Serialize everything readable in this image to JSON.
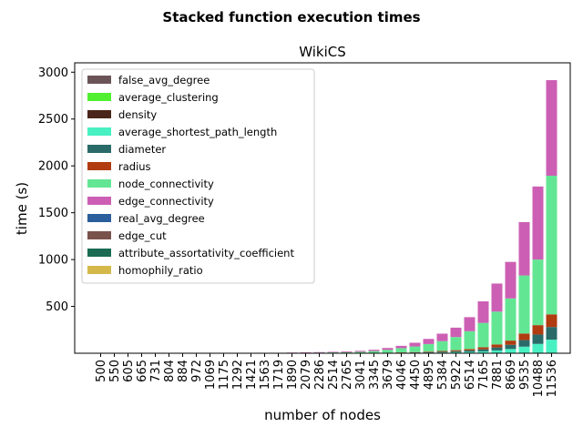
{
  "figure_title": "Stacked function execution times",
  "chart_data": {
    "type": "bar",
    "stacked": true,
    "title": "WikiCS",
    "xlabel": "number of nodes",
    "ylabel": "time (s)",
    "ylim": [
      0,
      3100
    ],
    "yticks": [
      500,
      1000,
      1500,
      2000,
      2500,
      3000
    ],
    "grid": false,
    "legend_position": "upper-left",
    "categories": [
      "500",
      "550",
      "605",
      "665",
      "731",
      "804",
      "884",
      "972",
      "1069",
      "1175",
      "1292",
      "1421",
      "1563",
      "1719",
      "1890",
      "2079",
      "2286",
      "2514",
      "2765",
      "3041",
      "3345",
      "3679",
      "4046",
      "4450",
      "4895",
      "5384",
      "5922",
      "6514",
      "7165",
      "7881",
      "8669",
      "9535",
      "10488",
      "11536"
    ],
    "series": [
      {
        "name": "homophily_ratio",
        "color": "#d4b94a",
        "values": [
          0,
          0,
          0,
          0,
          0,
          0,
          0,
          0,
          0,
          0,
          0,
          0,
          0,
          0,
          0,
          0,
          0,
          0,
          0,
          0,
          0,
          0,
          0,
          0,
          0,
          0,
          0,
          0,
          0,
          0,
          0,
          0,
          0,
          0
        ]
      },
      {
        "name": "attribute_assortativity_coefficient",
        "color": "#1a6b52",
        "values": [
          0,
          0,
          0,
          0,
          0,
          0,
          0,
          0,
          0,
          0,
          0,
          0,
          0,
          0,
          0,
          0,
          0,
          0,
          0,
          0,
          0,
          0,
          0,
          0,
          0,
          0,
          0,
          0,
          0,
          0,
          0,
          0,
          0,
          0
        ]
      },
      {
        "name": "edge_cut",
        "color": "#7a524c",
        "values": [
          0,
          0,
          0,
          0,
          0,
          0,
          0,
          0,
          0,
          0,
          0,
          0,
          0,
          0,
          0,
          0,
          0,
          0,
          0,
          0,
          0,
          0,
          0,
          0,
          0,
          0,
          0,
          0,
          0,
          0,
          0,
          0,
          0,
          0
        ]
      },
      {
        "name": "real_avg_degree",
        "color": "#2a5e9c",
        "values": [
          0,
          0,
          0,
          0,
          0,
          0,
          0,
          0,
          0,
          0,
          0,
          0,
          0,
          0,
          0,
          0,
          0,
          0,
          0,
          0,
          0,
          0,
          0,
          0,
          0,
          0,
          0,
          0,
          0,
          0,
          0,
          0,
          0,
          0
        ]
      },
      {
        "name": "average_shortest_path_length",
        "color": "#48f0c2",
        "values": [
          0,
          0,
          0,
          0,
          0,
          0,
          0,
          0,
          0,
          0,
          0,
          0,
          0,
          0,
          0,
          0,
          0,
          0,
          0,
          0.5,
          1,
          2,
          3,
          4,
          6,
          8,
          11,
          15,
          20,
          30,
          45,
          70,
          100,
          145
        ]
      },
      {
        "name": "diameter",
        "color": "#2a6b6a",
        "values": [
          0,
          0,
          0,
          0,
          0,
          0,
          0,
          0,
          0,
          0,
          0,
          0,
          0,
          0,
          0,
          0,
          0,
          0,
          0,
          0.5,
          1,
          2,
          3,
          4,
          6,
          8,
          11,
          15,
          22,
          32,
          45,
          70,
          100,
          135
        ]
      },
      {
        "name": "radius",
        "color": "#b03c0f",
        "values": [
          0,
          0,
          0,
          0,
          0,
          0,
          0,
          0,
          0,
          0,
          0,
          0,
          0,
          0,
          0,
          0,
          0,
          0,
          0,
          0.5,
          1,
          2,
          3,
          4,
          6,
          8,
          11,
          15,
          22,
          32,
          45,
          70,
          100,
          135
        ]
      },
      {
        "name": "density",
        "color": "#4a2519",
        "values": [
          0,
          0,
          0,
          0,
          0,
          0,
          0,
          0,
          0,
          0,
          0,
          0,
          0,
          0,
          0,
          0,
          0,
          0,
          0,
          0,
          0,
          0,
          0,
          0,
          0,
          0,
          0,
          0,
          0,
          0,
          0,
          0,
          0,
          0
        ]
      },
      {
        "name": "average_clustering",
        "color": "#50f030",
        "values": [
          0,
          0,
          0,
          0,
          0,
          0,
          0,
          0,
          0,
          0,
          0,
          0,
          0,
          0,
          0,
          0,
          0,
          0,
          0,
          0,
          0,
          0,
          0,
          0,
          0,
          0,
          0,
          0,
          0,
          0,
          0,
          0,
          0,
          0
        ]
      },
      {
        "name": "false_avg_degree",
        "color": "#6b5458",
        "values": [
          0,
          0,
          0,
          0,
          0,
          0,
          0,
          0,
          0,
          0,
          0,
          0,
          0,
          0,
          0,
          0,
          0,
          0,
          0,
          0,
          0,
          0,
          0,
          0,
          0,
          0,
          0,
          0,
          0,
          0,
          0,
          0,
          0,
          0
        ]
      },
      {
        "name": "node_connectivity",
        "color": "#63e693",
        "values": [
          0,
          0,
          0,
          0,
          0,
          0,
          0,
          0,
          0,
          1,
          1,
          2,
          2,
          3,
          4,
          5,
          7,
          9,
          11,
          14,
          20,
          30,
          45,
          60,
          80,
          105,
          140,
          190,
          260,
          350,
          450,
          620,
          700,
          1480
        ]
      },
      {
        "name": "edge_connectivity",
        "color": "#cc5fb4",
        "values": [
          0,
          0,
          0,
          0,
          0,
          0,
          0,
          0,
          0,
          1,
          1,
          1,
          2,
          2,
          3,
          4,
          5,
          6,
          8,
          10,
          14,
          20,
          25,
          40,
          55,
          80,
          100,
          150,
          230,
          300,
          390,
          570,
          780,
          1020
        ]
      }
    ],
    "legend_order": [
      "false_avg_degree",
      "average_clustering",
      "density",
      "average_shortest_path_length",
      "diameter",
      "radius",
      "node_connectivity",
      "edge_connectivity",
      "real_avg_degree",
      "edge_cut",
      "attribute_assortativity_coefficient",
      "homophily_ratio"
    ]
  }
}
